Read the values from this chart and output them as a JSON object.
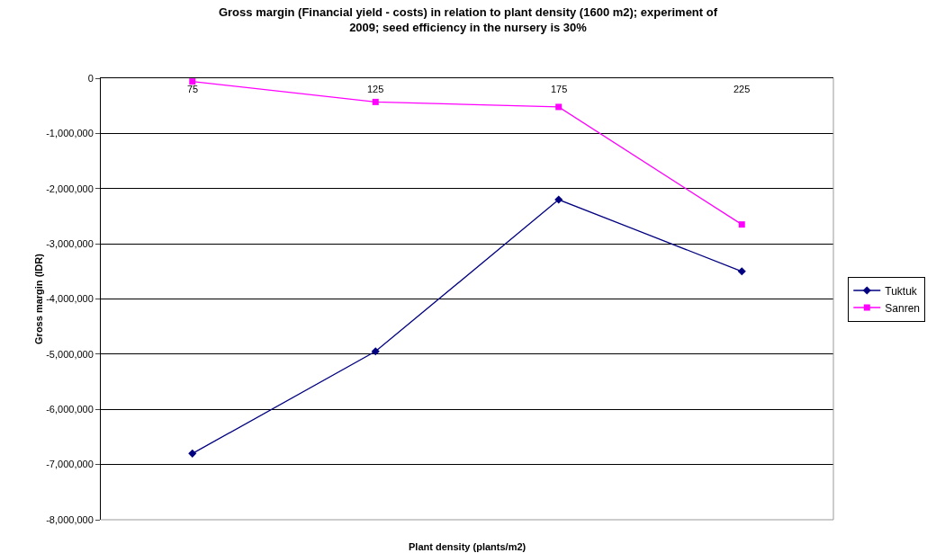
{
  "chart_data": {
    "type": "line",
    "title": "Gross margin (Financial yield - costs) in relation to plant density (1600 m2); experiment of 2009; seed efficiency in the nursery is 30%",
    "xlabel": "Plant density (plants/m2)",
    "ylabel": "Gross margin (IDR)",
    "categories": [
      "75",
      "125",
      "175",
      "225"
    ],
    "series": [
      {
        "name": "Tuktuk",
        "color": "#000080",
        "marker": "diamond",
        "values": [
          -6800000,
          -4950000,
          -2200000,
          -3500000
        ]
      },
      {
        "name": "Sanren",
        "color": "#ff00ff",
        "marker": "square",
        "values": [
          -60000,
          -430000,
          -520000,
          -2650000
        ]
      }
    ],
    "ylim": [
      -8000000,
      0
    ],
    "yticks": [
      {
        "value": -8000000,
        "label": "-8,000,000"
      },
      {
        "value": -7000000,
        "label": "-7,000,000"
      },
      {
        "value": -6000000,
        "label": "-6,000,000"
      },
      {
        "value": -5000000,
        "label": "-5,000,000"
      },
      {
        "value": -4000000,
        "label": "-4,000,000"
      },
      {
        "value": -3000000,
        "label": "-3,000,000"
      },
      {
        "value": -2000000,
        "label": "-2,000,000"
      },
      {
        "value": -1000000,
        "label": "-1,000,000"
      },
      0
    ],
    "grid": "y",
    "legend": "right",
    "line_style": "solid"
  }
}
